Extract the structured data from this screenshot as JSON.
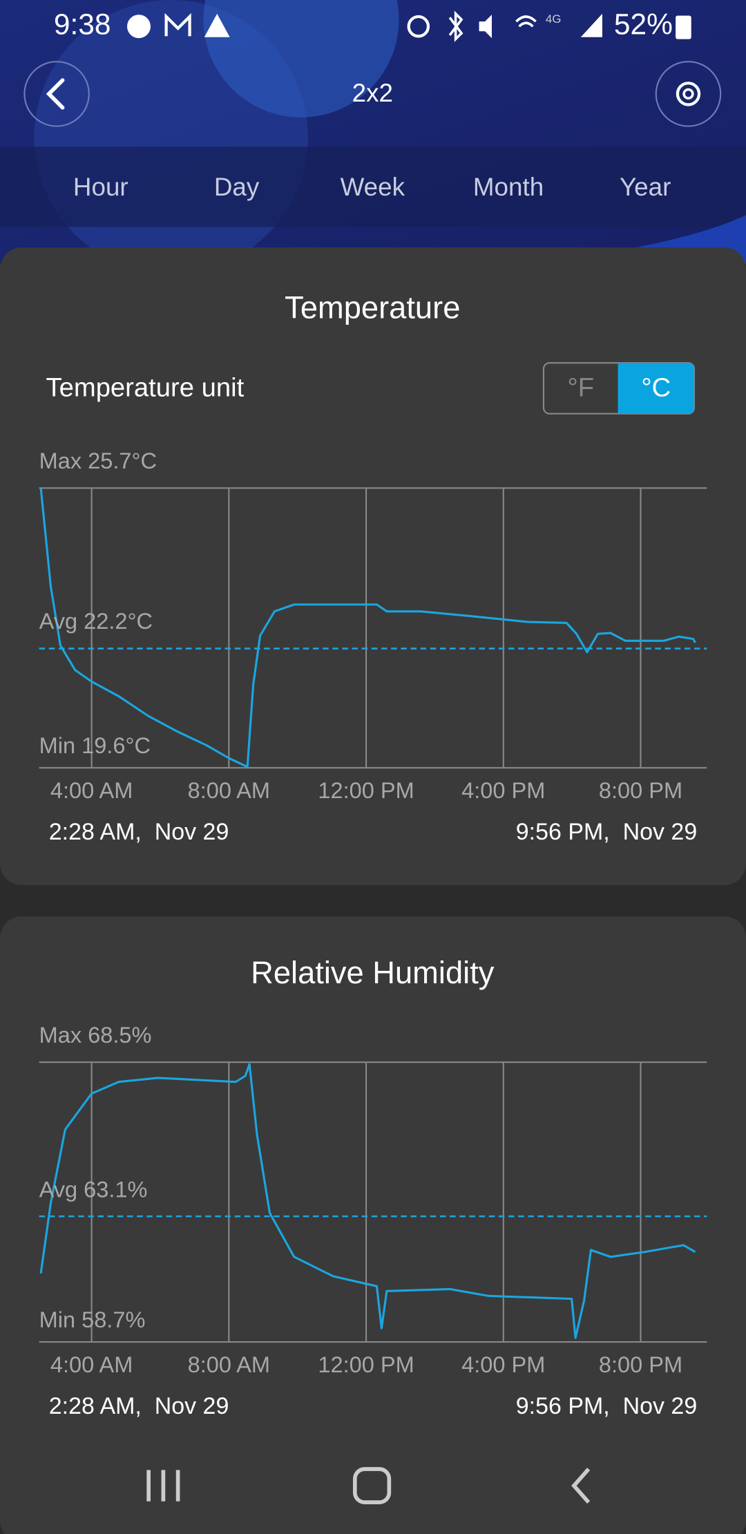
{
  "status_bar": {
    "time": "9:38",
    "network": "4G",
    "battery": "52%"
  },
  "header": {
    "title": "2x2"
  },
  "tabs": [
    "Hour",
    "Day",
    "Week",
    "Month",
    "Year"
  ],
  "temperature_card": {
    "unit_label": "Temperature unit",
    "units": [
      "°F",
      "°C"
    ]
  },
  "chart_data": [
    {
      "type": "line",
      "title": "Temperature",
      "max_label": "Max 25.7°C",
      "avg": 22.2,
      "avg_label": "Avg 22.2°C",
      "min_label": "Min 19.6°C",
      "start_label": "2:28 AM,  Nov 29",
      "end_label": "9:56 PM,  Nov 29",
      "xlim": [
        2.47,
        21.93
      ],
      "ylim": [
        19.6,
        25.7
      ],
      "xticks": [
        {
          "value": 4,
          "label": "4:00 AM"
        },
        {
          "value": 8,
          "label": "8:00 AM"
        },
        {
          "value": 12,
          "label": "12:00 PM"
        },
        {
          "value": 16,
          "label": "4:00 PM"
        },
        {
          "value": 20,
          "label": "8:00 PM"
        }
      ],
      "x": [
        2.52,
        2.81,
        3.09,
        3.52,
        4.0,
        4.79,
        5.65,
        6.5,
        7.35,
        8.0,
        8.54,
        8.71,
        8.91,
        9.33,
        9.9,
        11.04,
        12.31,
        12.6,
        13.59,
        15.01,
        16.71,
        17.84,
        18.13,
        18.44,
        18.75,
        19.12,
        19.55,
        20.68,
        21.11,
        21.53,
        21.59
      ],
      "series": [
        {
          "color": "#1ba6e0",
          "values": [
            25.7,
            23.55,
            22.27,
            21.73,
            21.48,
            21.16,
            20.73,
            20.39,
            20.09,
            19.81,
            19.62,
            21.41,
            22.48,
            23.01,
            23.16,
            23.16,
            23.16,
            23.01,
            23.01,
            22.91,
            22.78,
            22.76,
            22.52,
            22.12,
            22.52,
            22.54,
            22.37,
            22.37,
            22.46,
            22.41,
            22.33
          ]
        }
      ]
    },
    {
      "type": "line",
      "title": "Relative Humidity",
      "max_label": "Max 68.5%",
      "avg": 63.1,
      "avg_label": "Avg 63.1%",
      "min_label": "Min 58.7%",
      "start_label": "2:28 AM,  Nov 29",
      "end_label": "9:56 PM,  Nov 29",
      "xlim": [
        2.47,
        21.93
      ],
      "ylim": [
        58.7,
        68.5
      ],
      "xticks": [
        {
          "value": 4,
          "label": "4:00 AM"
        },
        {
          "value": 8,
          "label": "8:00 AM"
        },
        {
          "value": 12,
          "label": "12:00 PM"
        },
        {
          "value": 16,
          "label": "4:00 PM"
        },
        {
          "value": 20,
          "label": "8:00 PM"
        }
      ],
      "x": [
        2.52,
        2.81,
        3.23,
        4.0,
        4.79,
        5.93,
        7.06,
        8.2,
        8.48,
        8.6,
        8.82,
        9.19,
        9.9,
        11.04,
        12.31,
        12.45,
        12.6,
        14.44,
        15.57,
        17.99,
        18.1,
        18.35,
        18.55,
        19.12,
        20.11,
        21.25,
        21.59
      ],
      "series": [
        {
          "color": "#1ba6e0",
          "values": [
            61.1,
            63.57,
            66.14,
            67.4,
            67.81,
            67.95,
            67.88,
            67.81,
            68.02,
            68.43,
            65.96,
            63.22,
            61.68,
            61.0,
            60.65,
            59.18,
            60.48,
            60.55,
            60.31,
            60.21,
            58.84,
            60.14,
            61.92,
            61.68,
            61.85,
            62.09,
            61.85
          ]
        }
      ]
    }
  ]
}
